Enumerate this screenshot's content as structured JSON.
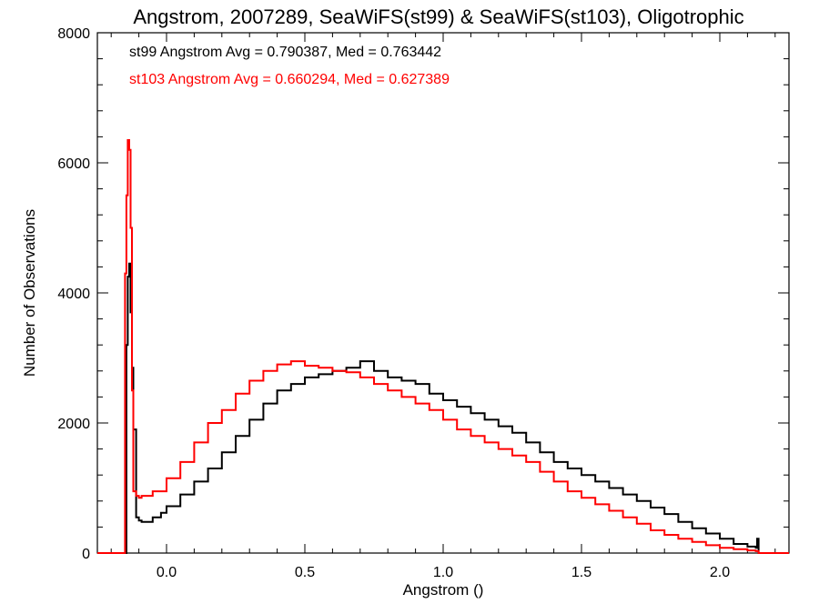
{
  "chart_data": {
    "type": "line",
    "title": "Angstrom, 2007289, SeaWiFS(st99) & SeaWiFS(st103), Oligotrophic",
    "xlabel": "Angstrom ()",
    "ylabel": "Number of Observations",
    "xlim": [
      -0.25,
      2.25
    ],
    "ylim": [
      0,
      8000
    ],
    "x_ticks": [
      0.0,
      0.5,
      1.0,
      1.5,
      2.0
    ],
    "x_tick_labels": [
      "0.0",
      "0.5",
      "1.0",
      "1.5",
      "2.0"
    ],
    "y_ticks": [
      0,
      2000,
      4000,
      6000,
      8000
    ],
    "y_tick_labels": [
      "0",
      "2000",
      "4000",
      "6000",
      "8000"
    ],
    "annotations": [
      {
        "text": "st99 Angstrom Avg = 0.790387, Med = 0.763442",
        "color": "#000000"
      },
      {
        "text": "st103 Angstrom Avg = 0.660294, Med = 0.627389",
        "color": "#ff0000"
      }
    ],
    "series": [
      {
        "color": "#000000",
        "x": [
          -0.25,
          -0.15,
          -0.145,
          -0.14,
          -0.135,
          -0.13,
          -0.125,
          -0.12,
          -0.11,
          -0.1,
          -0.09,
          -0.08,
          -0.05,
          -0.02,
          0.0,
          0.05,
          0.1,
          0.15,
          0.2,
          0.25,
          0.3,
          0.35,
          0.4,
          0.45,
          0.5,
          0.55,
          0.6,
          0.65,
          0.7,
          0.75,
          0.8,
          0.85,
          0.9,
          0.95,
          1.0,
          1.05,
          1.1,
          1.15,
          1.2,
          1.25,
          1.3,
          1.35,
          1.4,
          1.45,
          1.5,
          1.55,
          1.6,
          1.65,
          1.7,
          1.75,
          1.8,
          1.85,
          1.9,
          1.95,
          2.0,
          2.05,
          2.1,
          2.13,
          2.135,
          2.14,
          2.25
        ],
        "y": [
          0,
          0,
          3200,
          4250,
          4450,
          3700,
          2850,
          1900,
          550,
          500,
          480,
          480,
          550,
          620,
          720,
          900,
          1100,
          1300,
          1550,
          1800,
          2050,
          2300,
          2500,
          2600,
          2700,
          2750,
          2800,
          2850,
          2950,
          2800,
          2700,
          2650,
          2600,
          2450,
          2350,
          2250,
          2150,
          2050,
          1950,
          1850,
          1700,
          1550,
          1400,
          1300,
          1200,
          1100,
          1000,
          900,
          800,
          700,
          600,
          480,
          380,
          300,
          220,
          140,
          100,
          80,
          220,
          0,
          0
        ]
      },
      {
        "color": "#ff0000",
        "x": [
          -0.25,
          -0.155,
          -0.15,
          -0.145,
          -0.14,
          -0.135,
          -0.13,
          -0.125,
          -0.12,
          -0.11,
          -0.1,
          -0.09,
          -0.05,
          0.0,
          0.05,
          0.1,
          0.15,
          0.2,
          0.25,
          0.3,
          0.35,
          0.4,
          0.45,
          0.5,
          0.55,
          0.6,
          0.65,
          0.7,
          0.75,
          0.8,
          0.85,
          0.9,
          0.95,
          1.0,
          1.05,
          1.1,
          1.15,
          1.2,
          1.25,
          1.3,
          1.35,
          1.4,
          1.45,
          1.5,
          1.55,
          1.6,
          1.65,
          1.7,
          1.75,
          1.8,
          1.85,
          1.9,
          1.95,
          2.0,
          2.05,
          2.1,
          2.13,
          2.14,
          2.25
        ],
        "y": [
          0,
          0,
          4300,
          5500,
          6350,
          6200,
          5000,
          2500,
          950,
          880,
          850,
          880,
          950,
          1150,
          1400,
          1700,
          2000,
          2200,
          2450,
          2650,
          2800,
          2900,
          2950,
          2880,
          2850,
          2800,
          2780,
          2700,
          2600,
          2500,
          2400,
          2300,
          2200,
          2050,
          1900,
          1800,
          1700,
          1600,
          1500,
          1400,
          1250,
          1100,
          950,
          850,
          750,
          650,
          550,
          450,
          350,
          280,
          220,
          170,
          120,
          80,
          60,
          40,
          30,
          0,
          0
        ]
      }
    ]
  }
}
